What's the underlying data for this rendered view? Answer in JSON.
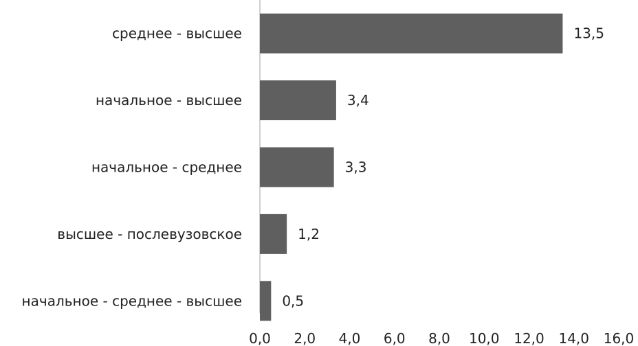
{
  "chart_data": {
    "type": "bar",
    "orientation": "horizontal",
    "categories": [
      "среднее - высшее",
      "начальное - высшее",
      "начальное - среднее",
      "высшее - послевузовское",
      "начальное - среднее - высшее"
    ],
    "values": [
      13.5,
      3.4,
      3.3,
      1.2,
      0.5
    ],
    "value_labels": [
      "13,5",
      "3,4",
      "3,3",
      "1,2",
      "0,5"
    ],
    "xlim": [
      0,
      16
    ],
    "x_ticks": [
      "0,0",
      "2,0",
      "4,0",
      "6,0",
      "8,0",
      "10,0",
      "12,0",
      "14,0",
      "16,0"
    ],
    "title": "",
    "xlabel": "",
    "ylabel": "",
    "grid": false,
    "legend": "none",
    "bar_color": "#5f5f5f",
    "axis_color": "#a0a0a0"
  }
}
